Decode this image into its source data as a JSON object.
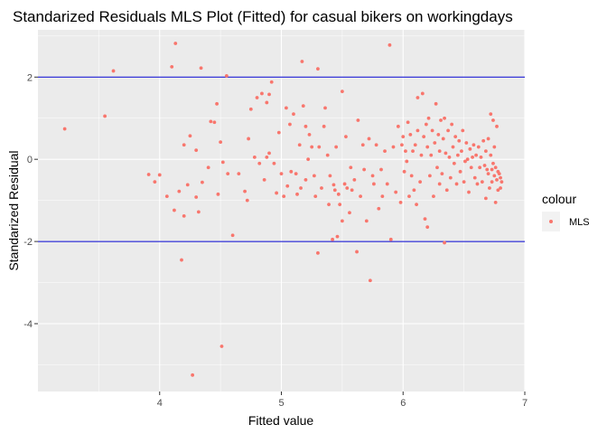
{
  "chart_data": {
    "type": "scatter",
    "title": "Standarized Residuals MLS Plot (Fitted) for casual bikers on workingdays",
    "xlabel": "Fitted value",
    "ylabel": "Standarized Residual",
    "xlim": [
      3.0,
      7.0
    ],
    "ylim": [
      -5.65,
      3.15
    ],
    "x_ticks": [
      4,
      5,
      6,
      7
    ],
    "y_ticks": [
      -4,
      -2,
      0,
      2
    ],
    "grid": true,
    "hlines": [
      2,
      -2
    ],
    "colors": {
      "points": "#F8766D",
      "hlines": "#0000CD",
      "panel": "#EBEBEB",
      "grid": "#FFFFFF"
    },
    "legend": {
      "title": "colour",
      "entries": [
        "MLS"
      ],
      "position": "right"
    },
    "series": [
      {
        "name": "MLS",
        "points": [
          [
            3.22,
            0.74
          ],
          [
            3.55,
            1.05
          ],
          [
            3.62,
            2.15
          ],
          [
            3.91,
            -0.37
          ],
          [
            3.96,
            -0.55
          ],
          [
            4.0,
            -0.38
          ],
          [
            4.06,
            -0.9
          ],
          [
            4.1,
            2.25
          ],
          [
            4.12,
            -1.24
          ],
          [
            4.13,
            2.82
          ],
          [
            4.16,
            -0.78
          ],
          [
            4.18,
            -2.45
          ],
          [
            4.2,
            0.35
          ],
          [
            4.2,
            -1.38
          ],
          [
            4.23,
            -0.62
          ],
          [
            4.25,
            0.57
          ],
          [
            4.27,
            -5.25
          ],
          [
            4.3,
            0.22
          ],
          [
            4.3,
            -0.92
          ],
          [
            4.32,
            -1.28
          ],
          [
            4.34,
            2.22
          ],
          [
            4.35,
            -0.56
          ],
          [
            4.4,
            -0.2
          ],
          [
            4.42,
            0.92
          ],
          [
            4.45,
            0.9
          ],
          [
            4.47,
            1.35
          ],
          [
            4.48,
            -0.85
          ],
          [
            4.5,
            0.42
          ],
          [
            4.51,
            -4.55
          ],
          [
            4.52,
            -0.07
          ],
          [
            4.55,
            2.03
          ],
          [
            4.56,
            -0.35
          ],
          [
            4.6,
            -1.85
          ],
          [
            4.65,
            -0.35
          ],
          [
            4.7,
            -0.78
          ],
          [
            4.72,
            -1.0
          ],
          [
            4.73,
            0.5
          ],
          [
            4.75,
            1.22
          ],
          [
            4.78,
            0.05
          ],
          [
            4.8,
            1.5
          ],
          [
            4.82,
            -0.1
          ],
          [
            4.84,
            1.6
          ],
          [
            4.86,
            -0.5
          ],
          [
            4.88,
            1.38
          ],
          [
            4.88,
            0.05
          ],
          [
            4.9,
            1.58
          ],
          [
            4.9,
            0.15
          ],
          [
            4.92,
            1.88
          ],
          [
            4.94,
            -0.1
          ],
          [
            4.96,
            -0.82
          ],
          [
            4.98,
            0.65
          ],
          [
            5.0,
            -0.35
          ],
          [
            5.02,
            -0.9
          ],
          [
            5.04,
            1.25
          ],
          [
            5.05,
            -0.65
          ],
          [
            5.07,
            0.85
          ],
          [
            5.08,
            -0.3
          ],
          [
            5.1,
            1.1
          ],
          [
            5.12,
            -0.35
          ],
          [
            5.13,
            -0.85
          ],
          [
            5.15,
            0.35
          ],
          [
            5.16,
            -0.7
          ],
          [
            5.17,
            2.38
          ],
          [
            5.18,
            1.3
          ],
          [
            5.2,
            -0.5
          ],
          [
            5.2,
            0.8
          ],
          [
            5.22,
            0.0
          ],
          [
            5.23,
            0.6
          ],
          [
            5.25,
            0.3
          ],
          [
            5.27,
            -0.4
          ],
          [
            5.28,
            -0.9
          ],
          [
            5.3,
            -2.28
          ],
          [
            5.3,
            2.2
          ],
          [
            5.31,
            0.3
          ],
          [
            5.33,
            -0.7
          ],
          [
            5.35,
            0.8
          ],
          [
            5.36,
            1.25
          ],
          [
            5.38,
            0.1
          ],
          [
            5.39,
            -1.1
          ],
          [
            5.4,
            -0.4
          ],
          [
            5.42,
            -1.95
          ],
          [
            5.43,
            -0.62
          ],
          [
            5.44,
            -0.75
          ],
          [
            5.45,
            0.3
          ],
          [
            5.46,
            -1.88
          ],
          [
            5.47,
            -0.85
          ],
          [
            5.48,
            -1.1
          ],
          [
            5.5,
            1.65
          ],
          [
            5.5,
            -1.5
          ],
          [
            5.52,
            -0.6
          ],
          [
            5.53,
            0.55
          ],
          [
            5.54,
            -0.7
          ],
          [
            5.56,
            -1.3
          ],
          [
            5.57,
            -0.2
          ],
          [
            5.58,
            -0.75
          ],
          [
            5.6,
            -0.5
          ],
          [
            5.62,
            -2.25
          ],
          [
            5.63,
            0.95
          ],
          [
            5.65,
            -0.9
          ],
          [
            5.67,
            0.35
          ],
          [
            5.68,
            -0.25
          ],
          [
            5.7,
            -1.5
          ],
          [
            5.72,
            0.5
          ],
          [
            5.73,
            -2.95
          ],
          [
            5.75,
            -0.4
          ],
          [
            5.76,
            -0.6
          ],
          [
            5.78,
            0.35
          ],
          [
            5.8,
            -1.2
          ],
          [
            5.82,
            -0.25
          ],
          [
            5.83,
            -0.9
          ],
          [
            5.85,
            0.2
          ],
          [
            5.87,
            -0.6
          ],
          [
            5.89,
            2.78
          ],
          [
            5.9,
            -1.95
          ],
          [
            5.92,
            0.3
          ],
          [
            5.94,
            -0.8
          ],
          [
            5.96,
            0.8
          ],
          [
            5.98,
            -1.05
          ],
          [
            5.99,
            0.35
          ],
          [
            6.0,
            0.55
          ],
          [
            6.01,
            -0.3
          ],
          [
            6.02,
            0.2
          ],
          [
            6.03,
            -0.05
          ],
          [
            6.04,
            0.9
          ],
          [
            6.05,
            -0.9
          ],
          [
            6.06,
            0.6
          ],
          [
            6.07,
            -0.4
          ],
          [
            6.08,
            0.2
          ],
          [
            6.09,
            -0.75
          ],
          [
            6.1,
            0.35
          ],
          [
            6.11,
            -1.1
          ],
          [
            6.12,
            0.7
          ],
          [
            6.12,
            1.5
          ],
          [
            6.14,
            -0.55
          ],
          [
            6.15,
            0.1
          ],
          [
            6.16,
            1.6
          ],
          [
            6.17,
            0.55
          ],
          [
            6.18,
            -1.45
          ],
          [
            6.19,
            0.85
          ],
          [
            6.2,
            -1.65
          ],
          [
            6.2,
            0.3
          ],
          [
            6.21,
            1.0
          ],
          [
            6.22,
            -0.4
          ],
          [
            6.23,
            0.1
          ],
          [
            6.24,
            0.7
          ],
          [
            6.25,
            -0.9
          ],
          [
            6.26,
            0.4
          ],
          [
            6.27,
            1.35
          ],
          [
            6.28,
            -0.2
          ],
          [
            6.29,
            0.6
          ],
          [
            6.3,
            -0.6
          ],
          [
            6.3,
            0.2
          ],
          [
            6.31,
            0.95
          ],
          [
            6.32,
            -0.35
          ],
          [
            6.33,
            0.5
          ],
          [
            6.34,
            -2.03
          ],
          [
            6.34,
            1.0
          ],
          [
            6.35,
            0.15
          ],
          [
            6.36,
            -0.75
          ],
          [
            6.37,
            0.7
          ],
          [
            6.38,
            0.05
          ],
          [
            6.39,
            -0.45
          ],
          [
            6.4,
            0.85
          ],
          [
            6.41,
            0.3
          ],
          [
            6.42,
            -0.1
          ],
          [
            6.43,
            0.55
          ],
          [
            6.44,
            -0.6
          ],
          [
            6.45,
            0.1
          ],
          [
            6.46,
            0.45
          ],
          [
            6.47,
            -0.3
          ],
          [
            6.48,
            0.2
          ],
          [
            6.49,
            0.7
          ],
          [
            6.5,
            -0.55
          ],
          [
            6.51,
            -0.05
          ],
          [
            6.52,
            0.4
          ],
          [
            6.53,
            0.0
          ],
          [
            6.54,
            -0.8
          ],
          [
            6.55,
            0.25
          ],
          [
            6.56,
            -0.2
          ],
          [
            6.57,
            0.05
          ],
          [
            6.58,
            0.35
          ],
          [
            6.59,
            -0.45
          ],
          [
            6.6,
            0.1
          ],
          [
            6.61,
            -0.6
          ],
          [
            6.62,
            0.3
          ],
          [
            6.63,
            -0.2
          ],
          [
            6.64,
            0.05
          ],
          [
            6.65,
            -0.55
          ],
          [
            6.66,
            0.45
          ],
          [
            6.67,
            -0.15
          ],
          [
            6.68,
            0.2
          ],
          [
            6.68,
            -0.95
          ],
          [
            6.69,
            -0.25
          ],
          [
            6.7,
            0.5
          ],
          [
            6.7,
            -0.35
          ],
          [
            6.71,
            -0.7
          ],
          [
            6.72,
            0.1
          ],
          [
            6.72,
            1.1
          ],
          [
            6.73,
            -0.25
          ],
          [
            6.73,
            -0.55
          ],
          [
            6.74,
            0.95
          ],
          [
            6.74,
            -0.1
          ],
          [
            6.75,
            -0.4
          ],
          [
            6.75,
            0.3
          ],
          [
            6.76,
            -0.2
          ],
          [
            6.76,
            -1.05
          ],
          [
            6.77,
            -0.5
          ],
          [
            6.77,
            0.8
          ],
          [
            6.78,
            -0.3
          ],
          [
            6.78,
            -0.75
          ],
          [
            6.79,
            -0.35
          ],
          [
            6.8,
            -0.45
          ],
          [
            6.8,
            -0.7
          ],
          [
            6.81,
            -0.55
          ]
        ]
      }
    ]
  }
}
